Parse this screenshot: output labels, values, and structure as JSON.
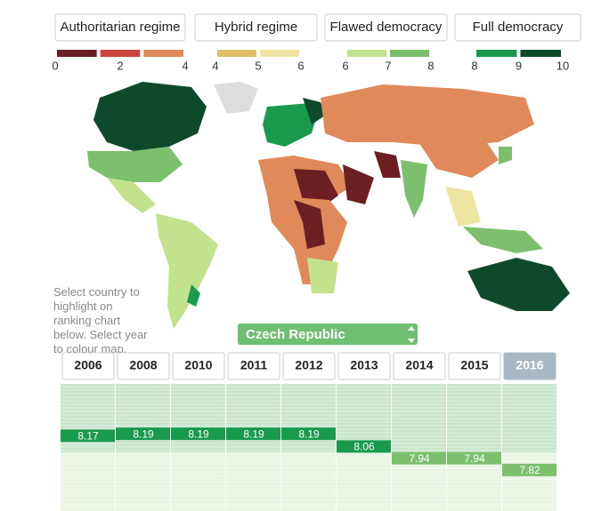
{
  "legend": {
    "groups": [
      {
        "label": "Authoritarian regime",
        "colors": [
          "#6b1f22",
          "#cc4440",
          "#e08a5c"
        ],
        "ticks": [
          0,
          2,
          4
        ]
      },
      {
        "label": "Hybrid regime",
        "colors": [
          "#dfbf6a",
          "#eee4a2"
        ],
        "ticks": [
          4,
          5,
          6
        ]
      },
      {
        "label": "Flawed democracy",
        "colors": [
          "#c3e28e",
          "#7cc06e"
        ],
        "ticks": [
          6,
          7,
          8
        ]
      },
      {
        "label": "Full democracy",
        "colors": [
          "#1a9a4c",
          "#0d4a2c"
        ],
        "ticks": [
          8,
          9,
          10
        ]
      }
    ]
  },
  "instructions": "Select country to highlight on ranking chart below. Select year to colour map.",
  "selected_country": "Czech Republic",
  "chart_data": {
    "type": "line",
    "categories": [
      "2006",
      "2008",
      "2010",
      "2011",
      "2012",
      "2013",
      "2014",
      "2015",
      "2016"
    ],
    "values": [
      8.17,
      8.19,
      8.19,
      8.19,
      8.19,
      8.06,
      7.94,
      7.94,
      7.82
    ],
    "ylim": [
      7.4,
      8.7
    ]
  }
}
